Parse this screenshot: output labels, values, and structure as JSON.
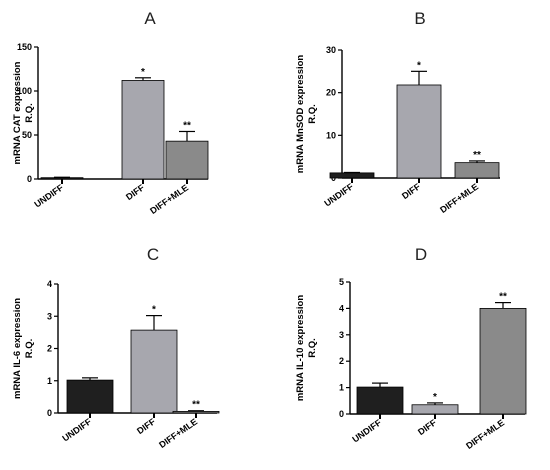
{
  "colors": {
    "undiff": "#1f1f1f",
    "diff": "#a7a7ae",
    "diff_mle": "#8a8a8a",
    "axis": "#000000"
  },
  "chart_data": [
    {
      "type": "bar",
      "panel": "A",
      "ylabel": [
        "mRNA CAT expression",
        "R.Q."
      ],
      "categories": [
        "UNDIFF",
        "DIFF",
        "DIFF+MLE"
      ],
      "values": [
        1.5,
        112,
        43
      ],
      "errors": [
        0.5,
        3,
        11
      ],
      "significance": [
        "",
        "*",
        "**"
      ],
      "ylim": [
        0,
        150
      ],
      "yticks": [
        0,
        50,
        100,
        150
      ],
      "grid": false
    },
    {
      "type": "bar",
      "panel": "B",
      "ylabel": [
        "mRNA MnSOD expression",
        "R.Q."
      ],
      "categories": [
        "UNDIFF",
        "DIFF",
        "DIFF+MLE"
      ],
      "values": [
        1.2,
        21.8,
        3.6
      ],
      "errors": [
        0.1,
        3.2,
        0.4
      ],
      "significance": [
        "",
        "*",
        "**"
      ],
      "ylim": [
        0,
        30
      ],
      "yticks": [
        0,
        10,
        20,
        30
      ],
      "grid": false
    },
    {
      "type": "bar",
      "panel": "C",
      "ylabel": [
        "mRNA IL-6 expression",
        "R.Q."
      ],
      "categories": [
        "UNDIFF",
        "DIFF",
        "DIFF+MLE"
      ],
      "values": [
        1.02,
        2.57,
        0.05
      ],
      "errors": [
        0.07,
        0.45,
        0.02
      ],
      "significance": [
        "",
        "*",
        "**"
      ],
      "ylim": [
        0,
        4
      ],
      "yticks": [
        0,
        1,
        2,
        3,
        4
      ],
      "grid": false
    },
    {
      "type": "bar",
      "panel": "D",
      "ylabel": [
        "mRNA IL-10 expression",
        "R.Q."
      ],
      "categories": [
        "UNDIFF",
        "DIFF",
        "DIFF+MLE"
      ],
      "values": [
        1.02,
        0.35,
        4.0
      ],
      "errors": [
        0.15,
        0.07,
        0.22
      ],
      "significance": [
        "",
        "*",
        "**"
      ],
      "ylim": [
        0,
        5
      ],
      "yticks": [
        0,
        1,
        2,
        3,
        4,
        5
      ],
      "grid": false
    }
  ]
}
